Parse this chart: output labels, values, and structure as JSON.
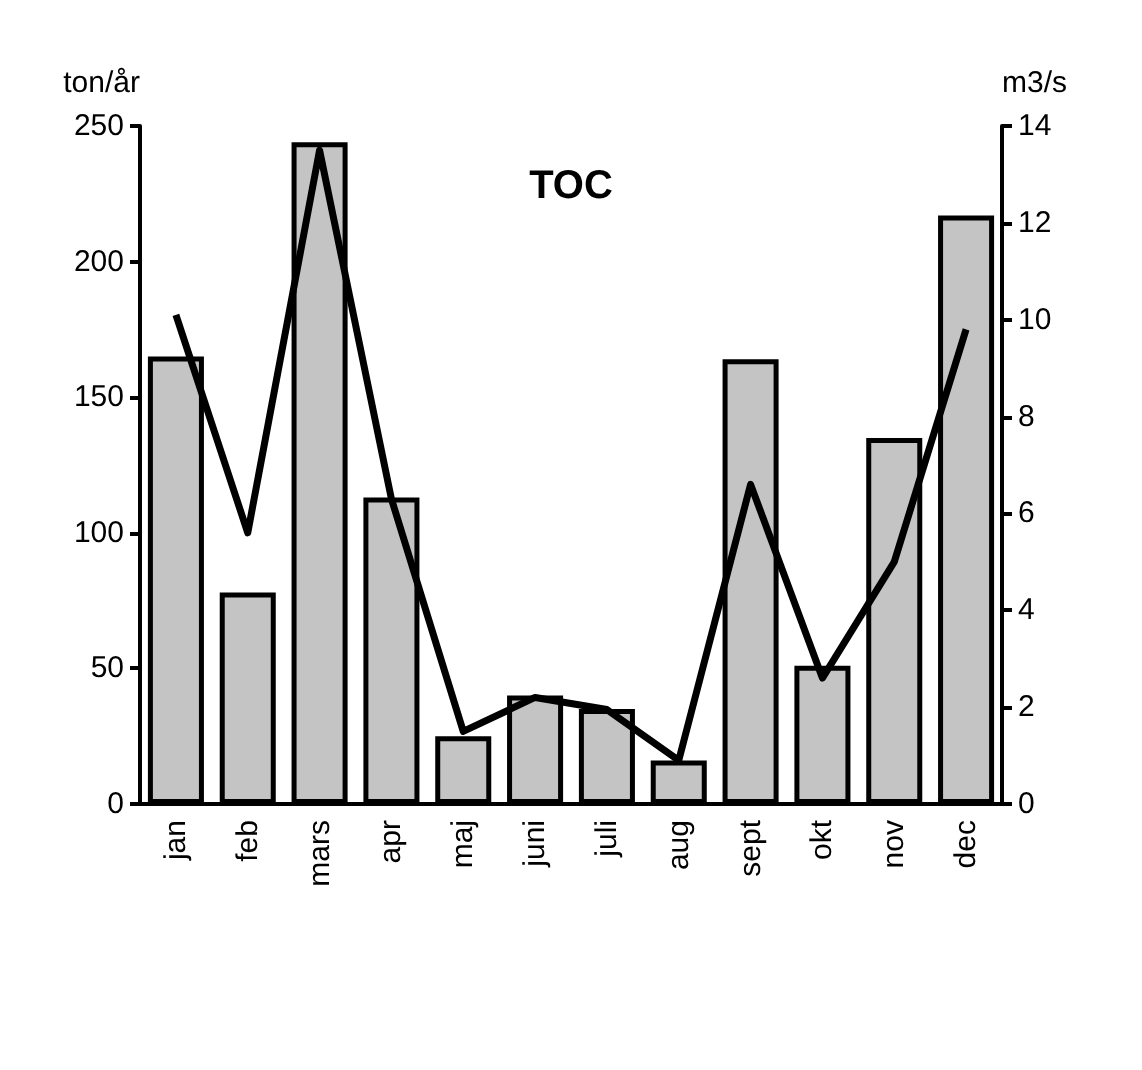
{
  "chart_data": {
    "type": "bar",
    "title": "TOC",
    "ylabel": "ton/år",
    "y2label": "m3/s",
    "categories": [
      "jan",
      "feb",
      "mars",
      "apr",
      "maj",
      "juni",
      "juli",
      "aug",
      "sept",
      "okt",
      "nov",
      "dec"
    ],
    "series": [
      {
        "color": "#c4c4c4",
        "values": [
          165,
          78,
          244,
          113,
          25,
          40,
          35,
          16,
          164,
          51,
          135,
          217
        ]
      },
      {
        "type": "line",
        "axis": "y2",
        "color": "#000000",
        "values": [
          10.1,
          5.6,
          13.5,
          6.3,
          1.5,
          2.2,
          1.95,
          0.9,
          6.6,
          2.6,
          5.0,
          9.8
        ]
      }
    ],
    "ylim": [
      0,
      250
    ],
    "yticks": [
      0,
      50,
      100,
      150,
      200,
      250
    ],
    "y2lim": [
      0,
      14
    ],
    "y2ticks": [
      0,
      2,
      4,
      6,
      8,
      10,
      12,
      14
    ],
    "grid": false,
    "marker": "none"
  }
}
